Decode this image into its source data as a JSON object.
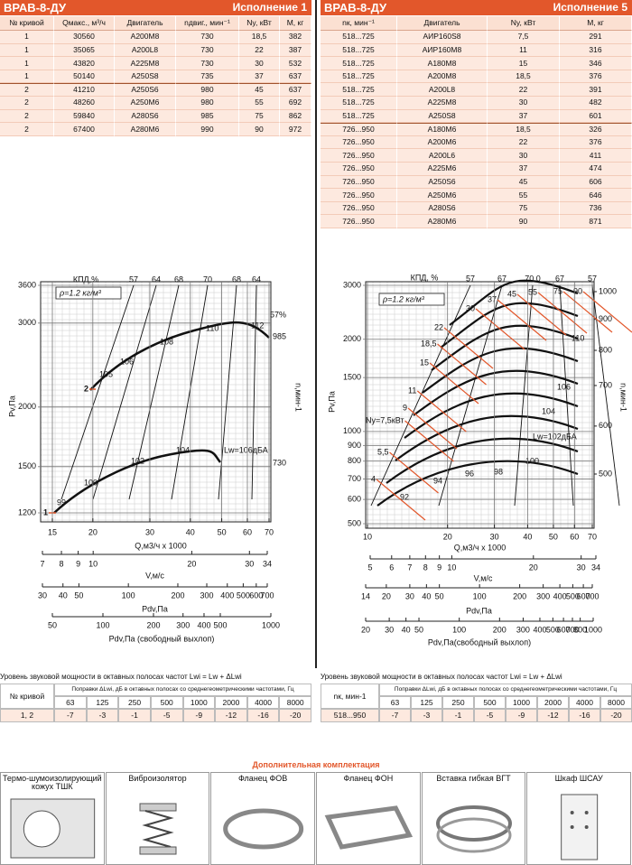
{
  "left": {
    "header": {
      "model": "ВРАВ-8-ДУ",
      "variant": "Исполнение 1"
    },
    "table": {
      "columns": [
        "№ кривой",
        "Qмакс., м³/ч",
        "Двигатель",
        "nдвиг., мин⁻¹",
        "Ny, кВт",
        "М, кг"
      ],
      "rows": [
        [
          "1",
          "30560",
          "А200М8",
          "730",
          "18,5",
          "382"
        ],
        [
          "1",
          "35065",
          "А200L8",
          "730",
          "22",
          "387"
        ],
        [
          "1",
          "43820",
          "А225М8",
          "730",
          "30",
          "532"
        ],
        [
          "1",
          "50140",
          "А250S8",
          "735",
          "37",
          "637"
        ],
        [
          "2",
          "41210",
          "А250S6",
          "980",
          "45",
          "637"
        ],
        [
          "2",
          "48260",
          "А250М6",
          "980",
          "55",
          "692"
        ],
        [
          "2",
          "59840",
          "А280S6",
          "985",
          "75",
          "862"
        ],
        [
          "2",
          "67400",
          "А280М6",
          "990",
          "90",
          "972"
        ]
      ]
    },
    "chart": {
      "y_label": "Pv,Па",
      "y2_label": "n,мин-1",
      "efficiency_label": "КПД,%",
      "density": "ρ=1.2 кг/м³",
      "efficiency_ticks": [
        "57",
        "64",
        "68",
        "70",
        "68",
        "64"
      ],
      "yticks": [
        1200,
        1500,
        2000,
        3000,
        3600
      ],
      "curve_labels": [
        "105",
        "106",
        "108",
        "110",
        "112",
        "57%",
        "985",
        "99",
        "100",
        "102",
        "104",
        "Lw=106дБА",
        "730",
        "1",
        "2"
      ]
    },
    "scales": [
      {
        "name": "Q,м3/ч x 1000",
        "ticks": [
          15,
          20,
          30,
          40,
          50,
          60,
          70
        ]
      },
      {
        "name": "V,м/с",
        "ticks": [
          7,
          8,
          9,
          10,
          20,
          30,
          34
        ]
      },
      {
        "name": "Pdv,Па",
        "ticks": [
          30,
          40,
          50,
          100,
          200,
          300,
          400,
          500,
          600,
          700
        ]
      },
      {
        "name": "Pdv,Па (свободный выхлоп)",
        "ticks": [
          50,
          100,
          200,
          300,
          400,
          500,
          1000
        ]
      }
    ],
    "sound": {
      "title": "Уровень звуковой мощности в октавных полосах частот Lwi = Lw + ΔLwi",
      "key_header": "№ кривой",
      "header": "Поправки ΔLwi, дБ в октавных полосах со среднегеометрическими частотами, Гц",
      "frequencies": [
        "63",
        "125",
        "250",
        "500",
        "1000",
        "2000",
        "4000",
        "8000"
      ],
      "row": [
        "1, 2",
        "-7",
        "-3",
        "-1",
        "-5",
        "-9",
        "-12",
        "-16",
        "-20"
      ]
    }
  },
  "right": {
    "header": {
      "model": "ВРАВ-8-ДУ",
      "variant": "Исполнение 5"
    },
    "table": {
      "columns": [
        "nк, мин⁻¹",
        "Двигатель",
        "Ny, кВт",
        "М, кг"
      ],
      "rows": [
        [
          "518...725",
          "АИР160S8",
          "7,5",
          "291"
        ],
        [
          "518...725",
          "АИР160М8",
          "11",
          "316"
        ],
        [
          "518...725",
          "А180М8",
          "15",
          "346"
        ],
        [
          "518...725",
          "А200М8",
          "18,5",
          "376"
        ],
        [
          "518...725",
          "А200L8",
          "22",
          "391"
        ],
        [
          "518...725",
          "А225М8",
          "30",
          "482"
        ],
        [
          "518...725",
          "А250S8",
          "37",
          "601"
        ],
        [
          "726...950",
          "А180М6",
          "18,5",
          "326"
        ],
        [
          "726...950",
          "А200М6",
          "22",
          "376"
        ],
        [
          "726...950",
          "А200L6",
          "30",
          "411"
        ],
        [
          "726...950",
          "А225М6",
          "37",
          "474"
        ],
        [
          "726...950",
          "А250S6",
          "45",
          "606"
        ],
        [
          "726...950",
          "А250М6",
          "55",
          "646"
        ],
        [
          "726...950",
          "А280S6",
          "75",
          "736"
        ],
        [
          "726...950",
          "А280М6",
          "90",
          "871"
        ]
      ]
    },
    "chart": {
      "y_label": "Pv,Па",
      "y2_label": "n,мин-1",
      "efficiency_label": "КПД, %",
      "density": "ρ=1.2 кг/м³",
      "efficiency_ticks": [
        "57",
        "67",
        "70,0",
        "67",
        "57"
      ],
      "yticks": [
        500,
        600,
        700,
        800,
        900,
        1000,
        1500,
        2000,
        3000
      ],
      "y2ticks": [
        500,
        600,
        700,
        800,
        900,
        1000
      ],
      "curve_labels": [
        "92",
        "94",
        "96",
        "98",
        "100",
        "104",
        "106",
        "110",
        "Lw=102дБА",
        "4",
        "5,5",
        "Ny=7,5кВт",
        "9",
        "11",
        "15",
        "18,5",
        "22",
        "30",
        "37",
        "45",
        "55",
        "75",
        "90"
      ]
    },
    "scales": [
      {
        "name": "Q,м3/ч x 1000",
        "ticks": [
          10,
          20,
          30,
          40,
          50,
          60,
          70
        ]
      },
      {
        "name": "V,м/с",
        "ticks": [
          5,
          6,
          7,
          8,
          9,
          10,
          20,
          30,
          34
        ]
      },
      {
        "name": "Pdv,Па",
        "ticks": [
          14,
          20,
          30,
          40,
          50,
          100,
          200,
          300,
          400,
          500,
          600,
          700
        ]
      },
      {
        "name": "Pdv,Па(свободный выхлоп)",
        "ticks": [
          20,
          30,
          40,
          50,
          100,
          200,
          300,
          400,
          500,
          600,
          700,
          800,
          1000
        ]
      }
    ],
    "sound": {
      "title": "Уровень звуковой мощности в октавных полосах частот Lwi = Lw + ΔLwi",
      "key_header": "nк, мин-1",
      "header": "Поправки ΔLwi, дБ в октавных полосах со среднегеометрическими частотами, Гц",
      "frequencies": [
        "63",
        "125",
        "250",
        "500",
        "1000",
        "2000",
        "4000",
        "8000"
      ],
      "row": [
        "518...950",
        "-7",
        "-3",
        "-1",
        "-5",
        "-9",
        "-12",
        "-16",
        "-20"
      ]
    }
  },
  "accessories": {
    "title": "Дополнительная комплектация",
    "items": [
      "Термо-шумоизолирующий кожух ТШК",
      "Виброизолятор",
      "Фланец ФОВ",
      "Фланец ФОН",
      "Вставка гибкая ВГТ",
      "Шкаф ШСАУ"
    ]
  }
}
